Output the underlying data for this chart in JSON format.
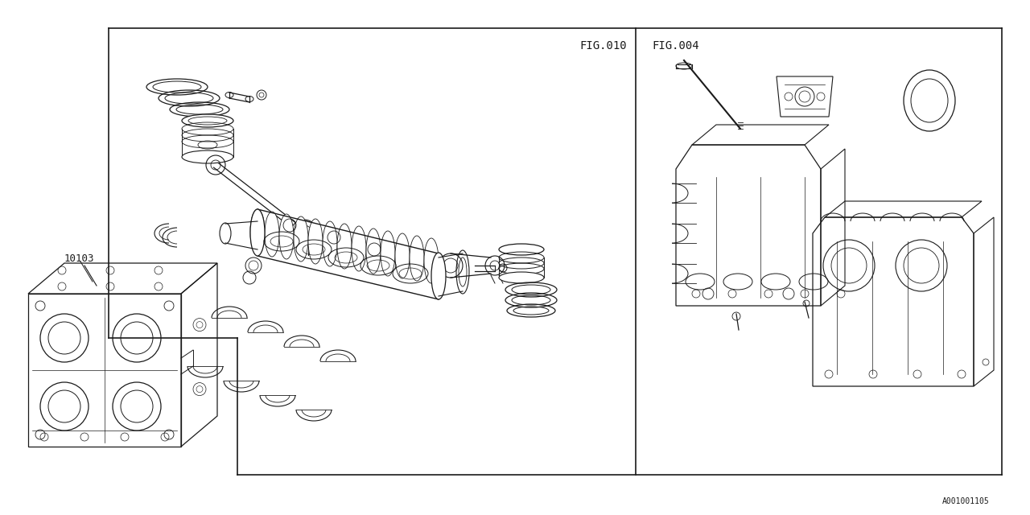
{
  "bg_color": "#ffffff",
  "line_color": "#1a1a1a",
  "fig_width": 12.8,
  "fig_height": 6.4,
  "ref_code": "A001001105",
  "fig010_label": "FIG.010",
  "fig004_label": "FIG.004",
  "part_label": "10103",
  "font_size_fig": 10,
  "font_size_part": 9,
  "font_size_ref": 7
}
